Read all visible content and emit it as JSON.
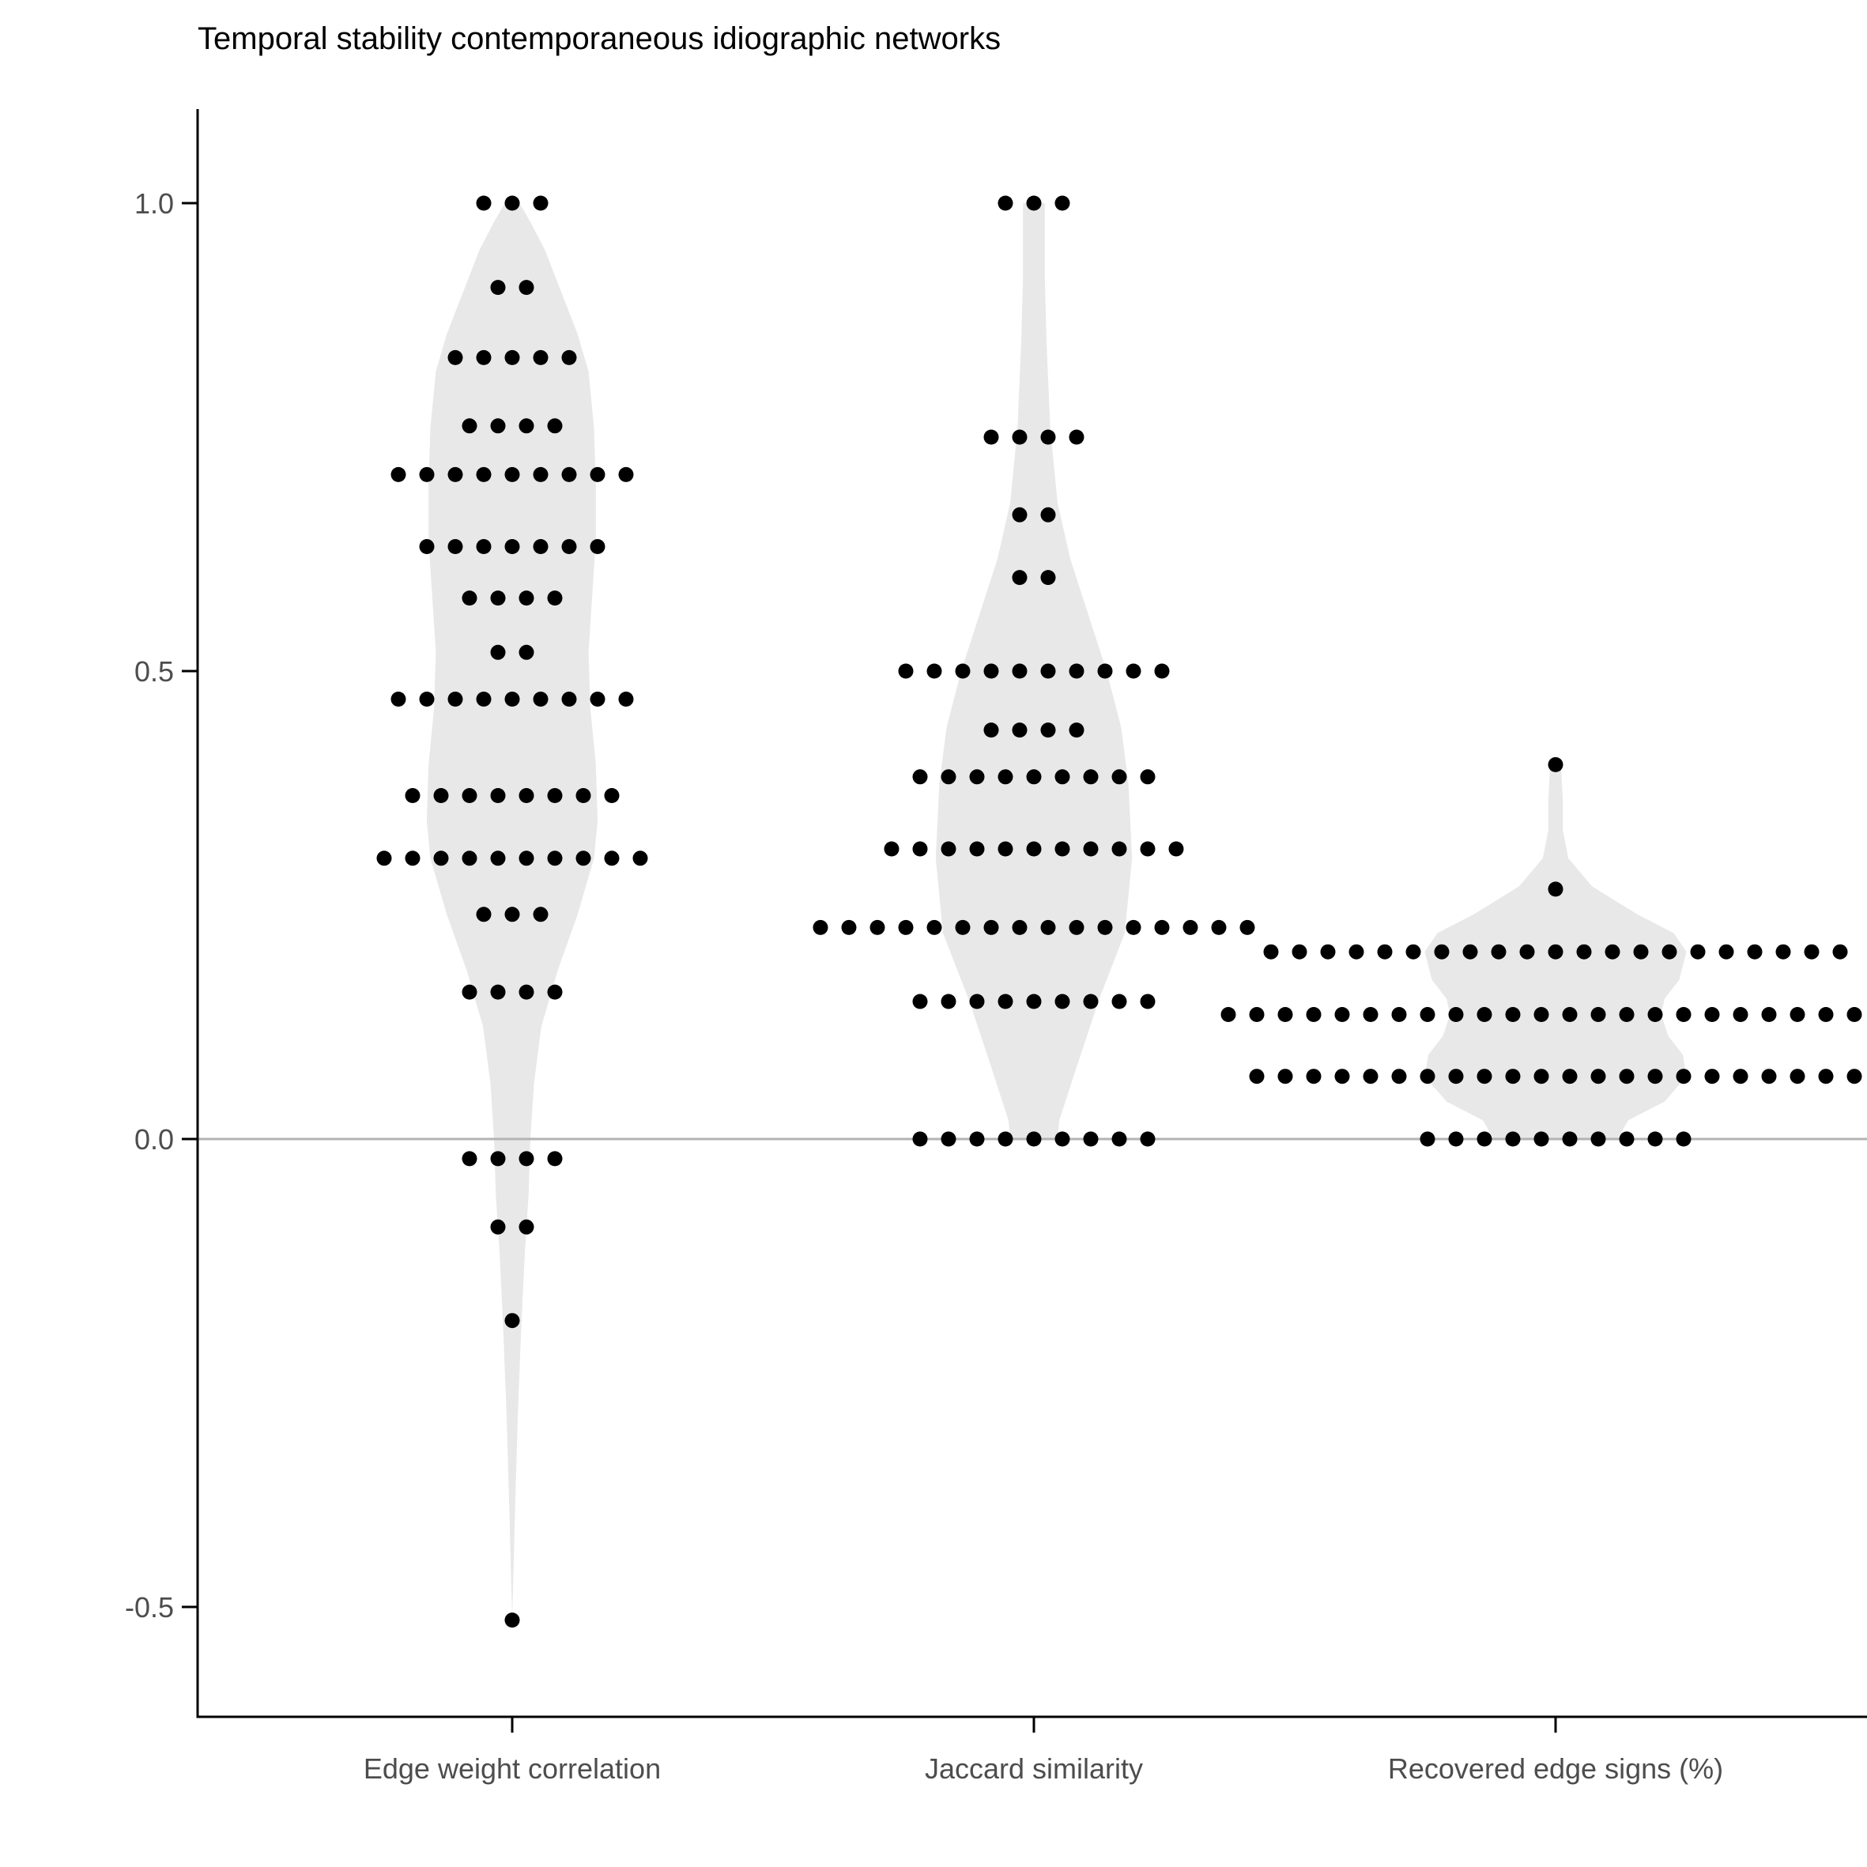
{
  "chart_data": {
    "type": "dotplot-violin",
    "title": "Temporal stability contemporaneous idiographic networks",
    "xlabel": "",
    "ylabel": "",
    "ylim": [
      -0.6,
      1.1
    ],
    "yticks": [
      -0.5,
      0.0,
      0.5,
      1.0
    ],
    "ytick_labels": [
      "-0.5",
      "0.0",
      "0.5",
      "1.0"
    ],
    "reference_line": 0,
    "grid": false,
    "colors": {
      "dot": "#000000",
      "violin": "#e8e8e8",
      "axis": "#000000",
      "reference_line": "#b3b3b3",
      "tick_label": "#4d4d4d"
    },
    "categories": [
      "Edge weight correlation",
      "Jaccard similarity",
      "Recovered edge signs (%)"
    ],
    "series": [
      {
        "bins": [
          {
            "y": 1.0,
            "n": 3
          },
          {
            "y": 0.91,
            "n": 2
          },
          {
            "y": 0.835,
            "n": 5
          },
          {
            "y": 0.762,
            "n": 4
          },
          {
            "y": 0.71,
            "n": 9
          },
          {
            "y": 0.633,
            "n": 7
          },
          {
            "y": 0.578,
            "n": 4
          },
          {
            "y": 0.52,
            "n": 2
          },
          {
            "y": 0.47,
            "n": 9
          },
          {
            "y": 0.367,
            "n": 8
          },
          {
            "y": 0.3,
            "n": 10
          },
          {
            "y": 0.24,
            "n": 3
          },
          {
            "y": 0.157,
            "n": 4
          },
          {
            "y": -0.021,
            "n": 4
          },
          {
            "y": -0.094,
            "n": 2
          },
          {
            "y": -0.194,
            "n": 1
          },
          {
            "y": -0.514,
            "n": 1
          }
        ],
        "violin": [
          [
            1.0,
            0.004
          ],
          [
            0.98,
            0.01
          ],
          [
            0.95,
            0.018
          ],
          [
            0.91,
            0.026
          ],
          [
            0.86,
            0.036
          ],
          [
            0.82,
            0.042
          ],
          [
            0.76,
            0.045
          ],
          [
            0.7,
            0.046
          ],
          [
            0.64,
            0.046
          ],
          [
            0.58,
            0.044
          ],
          [
            0.52,
            0.042
          ],
          [
            0.46,
            0.043
          ],
          [
            0.4,
            0.046
          ],
          [
            0.34,
            0.047
          ],
          [
            0.3,
            0.045
          ],
          [
            0.24,
            0.036
          ],
          [
            0.18,
            0.025
          ],
          [
            0.12,
            0.016
          ],
          [
            0.06,
            0.012
          ],
          [
            0.0,
            0.01
          ],
          [
            -0.06,
            0.009
          ],
          [
            -0.12,
            0.007
          ],
          [
            -0.2,
            0.005
          ],
          [
            -0.3,
            0.003
          ],
          [
            -0.4,
            0.0015
          ],
          [
            -0.514,
            0.0
          ]
        ]
      },
      {
        "bins": [
          {
            "y": 1.0,
            "n": 3
          },
          {
            "y": 0.75,
            "n": 4
          },
          {
            "y": 0.667,
            "n": 2
          },
          {
            "y": 0.6,
            "n": 2
          },
          {
            "y": 0.5,
            "n": 10
          },
          {
            "y": 0.437,
            "n": 4
          },
          {
            "y": 0.387,
            "n": 9
          },
          {
            "y": 0.31,
            "n": 11
          },
          {
            "y": 0.226,
            "n": 16
          },
          {
            "y": 0.147,
            "n": 9
          },
          {
            "y": 0.0,
            "n": 9
          }
        ],
        "violin": [
          [
            1.0,
            0.006
          ],
          [
            0.92,
            0.006
          ],
          [
            0.85,
            0.007
          ],
          [
            0.76,
            0.009
          ],
          [
            0.68,
            0.013
          ],
          [
            0.62,
            0.02
          ],
          [
            0.56,
            0.03
          ],
          [
            0.5,
            0.04
          ],
          [
            0.44,
            0.048
          ],
          [
            0.38,
            0.052
          ],
          [
            0.3,
            0.054
          ],
          [
            0.22,
            0.05
          ],
          [
            0.15,
            0.036
          ],
          [
            0.08,
            0.024
          ],
          [
            0.02,
            0.014
          ],
          [
            0.0,
            0.013
          ]
        ]
      },
      {
        "bins": [
          {
            "y": 0.4,
            "n": 1
          },
          {
            "y": 0.267,
            "n": 1
          },
          {
            "y": 0.2,
            "n": 21
          },
          {
            "y": 0.133,
            "n": 24
          },
          {
            "y": 0.067,
            "n": 22
          },
          {
            "y": 0.0,
            "n": 10
          }
        ],
        "violin": [
          [
            0.4,
            0.003
          ],
          [
            0.36,
            0.004
          ],
          [
            0.33,
            0.004
          ],
          [
            0.3,
            0.007
          ],
          [
            0.27,
            0.02
          ],
          [
            0.24,
            0.045
          ],
          [
            0.22,
            0.065
          ],
          [
            0.2,
            0.072
          ],
          [
            0.17,
            0.068
          ],
          [
            0.15,
            0.06
          ],
          [
            0.133,
            0.058
          ],
          [
            0.11,
            0.062
          ],
          [
            0.09,
            0.07
          ],
          [
            0.067,
            0.072
          ],
          [
            0.04,
            0.06
          ],
          [
            0.02,
            0.04
          ],
          [
            0.0,
            0.034
          ]
        ]
      }
    ]
  }
}
